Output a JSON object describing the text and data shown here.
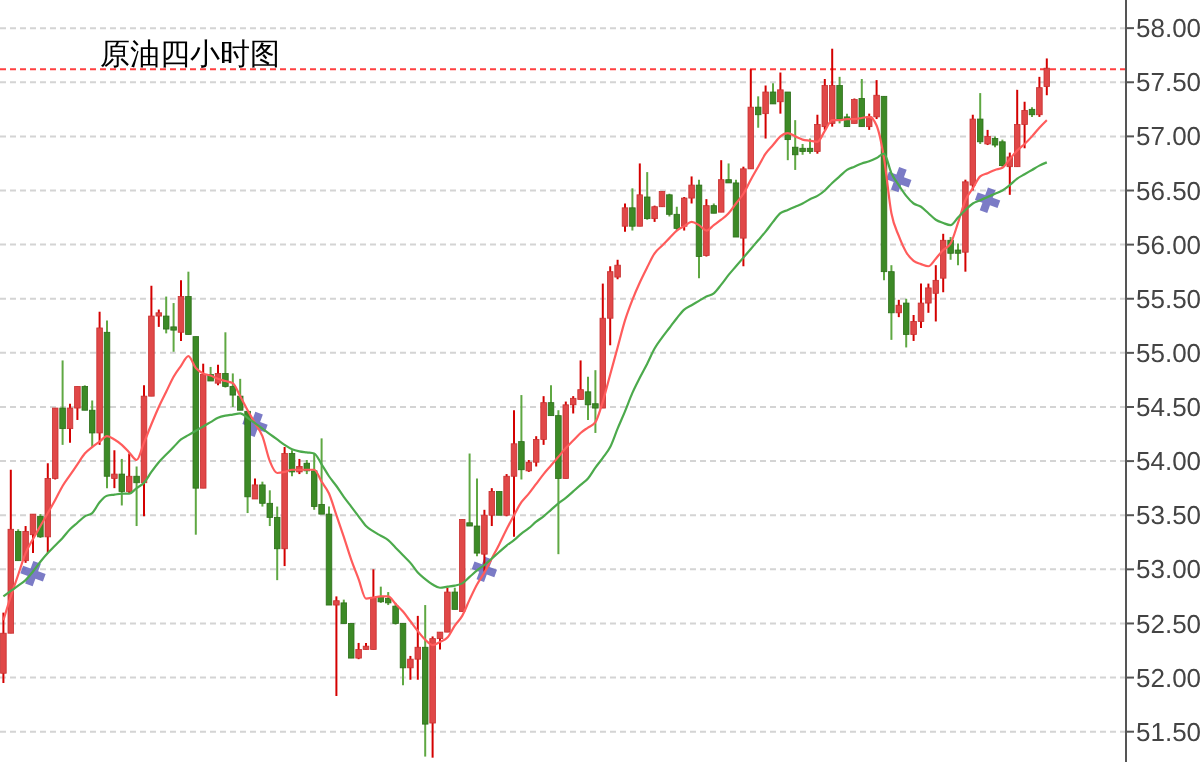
{
  "chart_data": {
    "type": "candlestick",
    "title": "原油四小时图",
    "categories": [
      null,
      null,
      null,
      null,
      null,
      null,
      null,
      null,
      null,
      null,
      null,
      null,
      null,
      null,
      null,
      null,
      null,
      null,
      null,
      null,
      null,
      null,
      null,
      null,
      null,
      null,
      null,
      null,
      null,
      null,
      null,
      null,
      null,
      null,
      null,
      null,
      null,
      null,
      null,
      null,
      null,
      null,
      null,
      null,
      null,
      null,
      null,
      null,
      null,
      null,
      null,
      null,
      null,
      null,
      null,
      null,
      null,
      null,
      null,
      null,
      null,
      null,
      null,
      null,
      null,
      null,
      null,
      null,
      null,
      null,
      null,
      null,
      null,
      null,
      null,
      null,
      null,
      null,
      null,
      null,
      null,
      null,
      null,
      null,
      null,
      null,
      null,
      null,
      null,
      null,
      null,
      null,
      null,
      null,
      null,
      null,
      null,
      null,
      null,
      null,
      null,
      null,
      null,
      null,
      null,
      null,
      null,
      null,
      null,
      null,
      null,
      null,
      null,
      null,
      null,
      null,
      null,
      null,
      null,
      null,
      null,
      null,
      null,
      null,
      null,
      null,
      null,
      null,
      null,
      null,
      null,
      null,
      null,
      null,
      null,
      null,
      null,
      null,
      null,
      null,
      null,
      null
    ],
    "ohlc": [
      [
        52.04,
        52.6,
        51.95,
        52.41
      ],
      [
        52.41,
        53.92,
        52.41,
        53.37
      ],
      [
        53.35,
        53.37,
        53.08,
        53.08
      ],
      [
        53.08,
        53.4,
        53.06,
        53.35
      ],
      [
        53.32,
        53.51,
        53.15,
        53.51
      ],
      [
        53.49,
        53.51,
        53.29,
        53.3
      ],
      [
        53.3,
        53.98,
        53.15,
        53.84
      ],
      [
        53.84,
        54.49,
        53.83,
        54.49
      ],
      [
        54.49,
        54.93,
        54.15,
        54.3
      ],
      [
        54.3,
        54.53,
        54.17,
        54.49
      ],
      [
        54.49,
        54.69,
        54.38,
        54.69
      ],
      [
        54.69,
        54.7,
        54.47,
        54.47
      ],
      [
        54.47,
        54.56,
        54.13,
        54.26
      ],
      [
        54.26,
        55.38,
        54.15,
        55.23
      ],
      [
        55.19,
        55.3,
        53.75,
        53.86
      ],
      [
        53.84,
        54.1,
        53.75,
        53.88
      ],
      [
        53.88,
        54.02,
        53.59,
        53.72
      ],
      [
        53.72,
        54.07,
        53.7,
        53.86
      ],
      [
        53.86,
        53.95,
        53.4,
        53.8
      ],
      [
        53.8,
        54.7,
        53.49,
        54.6
      ],
      [
        54.6,
        55.62,
        54.6,
        55.34
      ],
      [
        55.34,
        55.4,
        55.24,
        55.37
      ],
      [
        55.34,
        55.52,
        55.18,
        55.22
      ],
      [
        55.24,
        55.46,
        55.01,
        55.21
      ],
      [
        55.19,
        55.67,
        55.11,
        55.52
      ],
      [
        55.52,
        55.75,
        55.17,
        55.17
      ],
      [
        55.15,
        55.15,
        53.32,
        53.75
      ],
      [
        53.75,
        54.9,
        53.75,
        54.8
      ],
      [
        54.8,
        54.87,
        54.74,
        54.74
      ],
      [
        54.72,
        54.89,
        54.7,
        54.81
      ],
      [
        54.81,
        55.19,
        54.68,
        54.69
      ],
      [
        54.69,
        54.81,
        54.5,
        54.61
      ],
      [
        54.6,
        54.76,
        54.47,
        54.47
      ],
      [
        54.46,
        54.46,
        53.52,
        53.67
      ],
      [
        53.65,
        53.84,
        53.65,
        53.78
      ],
      [
        53.78,
        53.81,
        53.58,
        53.61
      ],
      [
        53.61,
        53.73,
        53.4,
        53.48
      ],
      [
        53.48,
        53.58,
        52.9,
        53.19
      ],
      [
        53.19,
        54.13,
        53.03,
        54.07
      ],
      [
        54.07,
        54.1,
        53.86,
        53.9
      ],
      [
        53.9,
        54.02,
        53.88,
        53.95
      ],
      [
        53.98,
        54.01,
        53.88,
        53.91
      ],
      [
        53.91,
        54.07,
        53.55,
        53.58
      ],
      [
        53.6,
        54.21,
        53.51,
        53.51
      ],
      [
        53.51,
        53.58,
        52.67,
        52.67
      ],
      [
        52.67,
        52.75,
        51.83,
        52.71
      ],
      [
        52.69,
        52.72,
        52.5,
        52.5
      ],
      [
        52.5,
        52.5,
        52.18,
        52.18
      ],
      [
        52.18,
        52.32,
        52.17,
        52.26
      ],
      [
        52.26,
        52.32,
        52.26,
        52.29
      ],
      [
        52.26,
        53.0,
        52.26,
        52.74
      ],
      [
        52.75,
        52.84,
        52.69,
        52.7
      ],
      [
        52.73,
        52.79,
        52.67,
        52.69
      ],
      [
        52.66,
        52.69,
        52.49,
        52.5
      ],
      [
        52.5,
        52.5,
        51.93,
        52.09
      ],
      [
        52.09,
        52.2,
        51.98,
        52.17
      ],
      [
        52.17,
        52.57,
        51.98,
        52.28
      ],
      [
        52.28,
        52.67,
        51.27,
        51.57
      ],
      [
        51.58,
        52.38,
        51.26,
        52.36
      ],
      [
        52.36,
        52.42,
        52.26,
        52.42
      ],
      [
        52.42,
        52.83,
        52.42,
        52.79
      ],
      [
        52.79,
        52.83,
        52.63,
        52.63
      ],
      [
        52.61,
        53.46,
        52.61,
        53.46
      ],
      [
        53.43,
        54.07,
        53.4,
        53.4
      ],
      [
        53.4,
        53.84,
        53.12,
        53.15
      ],
      [
        53.14,
        53.55,
        52.98,
        53.5
      ],
      [
        53.5,
        53.75,
        53.4,
        53.72
      ],
      [
        53.72,
        53.72,
        53.5,
        53.5
      ],
      [
        53.5,
        53.88,
        53.49,
        53.86
      ],
      [
        53.86,
        54.47,
        53.3,
        54.16
      ],
      [
        54.18,
        54.61,
        53.83,
        53.92
      ],
      [
        53.91,
        54.01,
        53.9,
        53.99
      ],
      [
        53.99,
        54.23,
        53.95,
        54.2
      ],
      [
        54.2,
        54.6,
        54.15,
        54.54
      ],
      [
        54.54,
        54.7,
        54.42,
        54.42
      ],
      [
        54.42,
        54.47,
        53.14,
        53.84
      ],
      [
        53.84,
        54.55,
        53.84,
        54.52
      ],
      [
        54.52,
        54.6,
        54.44,
        54.58
      ],
      [
        54.57,
        54.93,
        54.57,
        54.66
      ],
      [
        54.64,
        54.78,
        54.38,
        54.52
      ],
      [
        54.53,
        54.84,
        54.26,
        54.49
      ],
      [
        54.49,
        55.64,
        54.49,
        55.32
      ],
      [
        55.32,
        55.8,
        55.07,
        55.75
      ],
      [
        55.7,
        55.86,
        55.68,
        55.81
      ],
      [
        56.17,
        56.38,
        56.12,
        56.34
      ],
      [
        56.34,
        56.52,
        56.13,
        56.17
      ],
      [
        56.17,
        56.75,
        56.17,
        56.46
      ],
      [
        56.44,
        56.67,
        56.23,
        56.24
      ],
      [
        56.24,
        56.36,
        56.21,
        56.35
      ],
      [
        56.35,
        56.49,
        56.35,
        56.49
      ],
      [
        56.46,
        56.47,
        56.26,
        56.28
      ],
      [
        56.28,
        56.35,
        56.13,
        56.15
      ],
      [
        56.17,
        56.44,
        56.13,
        56.43
      ],
      [
        56.43,
        56.63,
        56.38,
        56.55
      ],
      [
        56.55,
        56.6,
        55.69,
        55.89
      ],
      [
        55.9,
        56.42,
        55.89,
        56.36
      ],
      [
        56.36,
        56.38,
        56.29,
        56.29
      ],
      [
        56.3,
        56.78,
        56.3,
        56.6
      ],
      [
        56.6,
        56.75,
        56.57,
        56.57
      ],
      [
        56.57,
        56.6,
        56.07,
        56.07
      ],
      [
        56.06,
        56.72,
        55.8,
        56.7
      ],
      [
        56.7,
        57.62,
        56.7,
        57.27
      ],
      [
        57.27,
        57.37,
        57.08,
        57.2
      ],
      [
        57.21,
        57.47,
        56.98,
        57.41
      ],
      [
        57.41,
        57.49,
        57.3,
        57.3
      ],
      [
        57.32,
        57.59,
        57.21,
        57.43
      ],
      [
        57.41,
        57.41,
        56.78,
        56.97
      ],
      [
        56.9,
        57.15,
        56.69,
        56.83
      ],
      [
        56.89,
        56.93,
        56.83,
        56.86
      ],
      [
        56.89,
        56.98,
        56.84,
        56.86
      ],
      [
        56.86,
        57.2,
        56.84,
        57.11
      ],
      [
        57.09,
        57.53,
        57.06,
        57.47
      ],
      [
        57.12,
        57.81,
        57.09,
        57.47
      ],
      [
        57.47,
        57.55,
        57.12,
        57.16
      ],
      [
        57.18,
        57.21,
        57.09,
        57.09
      ],
      [
        57.12,
        57.35,
        57.12,
        57.34
      ],
      [
        57.35,
        57.53,
        57.09,
        57.09
      ],
      [
        57.09,
        57.21,
        57.06,
        57.18
      ],
      [
        57.18,
        57.52,
        57.16,
        57.38
      ],
      [
        57.37,
        57.37,
        55.67,
        55.75
      ],
      [
        55.75,
        55.81,
        55.12,
        55.37
      ],
      [
        55.37,
        55.49,
        55.33,
        55.44
      ],
      [
        55.46,
        55.5,
        55.05,
        55.17
      ],
      [
        55.17,
        55.35,
        55.11,
        55.29
      ],
      [
        55.29,
        55.64,
        55.23,
        55.46
      ],
      [
        55.46,
        55.64,
        55.37,
        55.6
      ],
      [
        55.55,
        55.81,
        55.29,
        55.67
      ],
      [
        55.69,
        56.1,
        55.56,
        56.04
      ],
      [
        56.04,
        56.07,
        55.86,
        55.92
      ],
      [
        55.95,
        56.01,
        55.81,
        55.92
      ],
      [
        55.93,
        56.6,
        55.75,
        56.58
      ],
      [
        56.55,
        57.2,
        56.5,
        57.16
      ],
      [
        57.16,
        57.4,
        56.93,
        56.95
      ],
      [
        56.93,
        57.06,
        56.92,
        57.0
      ],
      [
        56.98,
        57.0,
        56.9,
        56.92
      ],
      [
        56.95,
        56.97,
        56.72,
        56.73
      ],
      [
        56.72,
        56.85,
        56.46,
        56.81
      ],
      [
        56.72,
        57.43,
        56.72,
        57.11
      ],
      [
        57.11,
        57.32,
        56.89,
        57.24
      ],
      [
        57.25,
        57.27,
        57.18,
        57.2
      ],
      [
        57.2,
        57.55,
        57.18,
        57.45
      ],
      [
        57.46,
        57.72,
        57.38,
        57.63
      ]
    ],
    "series": [
      {
        "type": "line",
        "color": "#ff5c5c",
        "values": [
          52.53,
          52.75,
          52.95,
          53.15,
          53.28,
          53.4,
          53.52,
          53.64,
          53.77,
          53.87,
          53.97,
          54.07,
          54.13,
          54.18,
          54.23,
          54.2,
          54.15,
          54.08,
          54.01,
          54.17,
          54.34,
          54.5,
          54.64,
          54.78,
          54.88,
          54.97,
          54.86,
          54.81,
          54.79,
          54.76,
          54.74,
          54.72,
          54.6,
          54.47,
          54.35,
          54.23,
          54.0,
          53.89,
          53.9,
          53.92,
          53.92,
          53.92,
          53.92,
          53.81,
          53.7,
          53.5,
          53.3,
          53.09,
          52.91,
          52.73,
          52.74,
          52.75,
          52.75,
          52.68,
          52.61,
          52.52,
          52.43,
          52.35,
          52.3,
          52.33,
          52.37,
          52.48,
          52.57,
          52.72,
          52.86,
          52.97,
          53.1,
          53.23,
          53.37,
          53.5,
          53.62,
          53.7,
          53.79,
          53.88,
          53.96,
          54.04,
          54.12,
          54.19,
          54.26,
          54.31,
          54.36,
          54.55,
          54.8,
          55.05,
          55.3,
          55.49,
          55.65,
          55.79,
          55.92,
          55.99,
          56.06,
          56.13,
          56.17,
          56.21,
          56.18,
          56.13,
          56.18,
          56.23,
          56.29,
          56.38,
          56.47,
          56.6,
          56.72,
          56.84,
          56.92,
          57.0,
          57.03,
          57.0,
          56.97,
          56.96,
          56.95,
          57.05,
          57.15,
          57.15,
          57.16,
          57.16,
          57.17,
          57.18,
          57.1,
          56.8,
          56.29,
          56.08,
          55.93,
          55.85,
          55.82,
          55.8,
          55.87,
          55.95,
          56.01,
          56.2,
          56.41,
          56.52,
          56.63,
          56.66,
          56.69,
          56.71,
          56.79,
          56.87,
          56.93,
          57.0,
          57.08,
          57.15
        ]
      },
      {
        "type": "line",
        "color": "#4caa4c",
        "values": [
          52.75,
          52.8,
          52.85,
          52.9,
          52.98,
          53.07,
          53.15,
          53.22,
          53.29,
          53.37,
          53.43,
          53.49,
          53.52,
          53.62,
          53.68,
          53.69,
          53.7,
          53.7,
          53.75,
          53.8,
          53.9,
          53.99,
          54.06,
          54.13,
          54.2,
          54.24,
          54.28,
          54.32,
          54.36,
          54.4,
          54.42,
          54.43,
          54.44,
          54.4,
          54.35,
          54.3,
          54.25,
          54.2,
          54.15,
          54.11,
          54.09,
          54.08,
          54.07,
          53.97,
          53.86,
          53.77,
          53.67,
          53.58,
          53.49,
          53.4,
          53.35,
          53.31,
          53.27,
          53.2,
          53.13,
          53.06,
          52.97,
          52.91,
          52.86,
          52.83,
          52.84,
          52.85,
          52.87,
          52.93,
          52.99,
          53.04,
          53.1,
          53.16,
          53.22,
          53.27,
          53.33,
          53.38,
          53.44,
          53.49,
          53.55,
          53.61,
          53.66,
          53.72,
          53.78,
          53.84,
          53.94,
          54.03,
          54.13,
          54.3,
          54.46,
          54.63,
          54.77,
          54.9,
          55.04,
          55.14,
          55.23,
          55.32,
          55.4,
          55.44,
          55.48,
          55.52,
          55.55,
          55.63,
          55.72,
          55.8,
          55.88,
          55.96,
          56.04,
          56.12,
          56.21,
          56.29,
          56.32,
          56.35,
          56.38,
          56.42,
          56.45,
          56.5,
          56.57,
          56.63,
          56.69,
          56.72,
          56.75,
          56.77,
          56.8,
          56.84,
          56.66,
          56.55,
          56.45,
          56.38,
          56.35,
          56.29,
          56.23,
          56.2,
          56.18,
          56.25,
          56.32,
          56.38,
          56.41,
          56.44,
          56.47,
          56.5,
          56.55,
          56.61,
          56.65,
          56.69,
          56.73,
          56.76
        ]
      },
      {
        "type": "scatter",
        "color": "#5a5ab8",
        "marker": "cross",
        "values": [
          null,
          null,
          null,
          null,
          52.96,
          null,
          null,
          null,
          null,
          null,
          null,
          null,
          null,
          null,
          null,
          null,
          null,
          null,
          null,
          null,
          null,
          null,
          null,
          null,
          null,
          null,
          null,
          null,
          null,
          null,
          null,
          null,
          null,
          null,
          54.34,
          null,
          null,
          null,
          null,
          null,
          null,
          null,
          null,
          null,
          null,
          null,
          null,
          null,
          null,
          null,
          null,
          null,
          null,
          null,
          null,
          null,
          null,
          null,
          null,
          null,
          null,
          null,
          null,
          null,
          null,
          53.0,
          null,
          null,
          null,
          null,
          null,
          null,
          null,
          null,
          null,
          null,
          null,
          null,
          null,
          null,
          null,
          null,
          null,
          null,
          null,
          null,
          null,
          null,
          null,
          null,
          null,
          null,
          null,
          null,
          null,
          null,
          null,
          null,
          null,
          null,
          null,
          null,
          null,
          null,
          null,
          null,
          null,
          null,
          null,
          null,
          null,
          null,
          null,
          null,
          null,
          null,
          null,
          null,
          null,
          null,
          null,
          56.6,
          null,
          null,
          null,
          null,
          null,
          null,
          null,
          null,
          null,
          null,
          null,
          56.41,
          null,
          null,
          null,
          null,
          null,
          null,
          null,
          null
        ]
      }
    ],
    "ylim": [
      51.22,
      58.26
    ],
    "yticks": [
      {
        "value": 51.5,
        "label": "51.50"
      },
      {
        "value": 52,
        "label": "52.00"
      },
      {
        "value": 52.5,
        "label": "52.50"
      },
      {
        "value": 53,
        "label": "53.00"
      },
      {
        "value": 53.5,
        "label": "53.50"
      },
      {
        "value": 54,
        "label": "54.00"
      },
      {
        "value": 54.5,
        "label": "54.50"
      },
      {
        "value": 55,
        "label": "55.00"
      },
      {
        "value": 55.5,
        "label": "55.50"
      },
      {
        "value": 56,
        "label": "56.00"
      },
      {
        "value": 56.5,
        "label": "56.50"
      },
      {
        "value": 57,
        "label": "57.00"
      },
      {
        "value": 57.5,
        "label": "57.50"
      },
      {
        "value": 58,
        "label": "58.00"
      }
    ],
    "grid": "y",
    "tick_labels": "y",
    "ref_lines": [
      {
        "axis": "y",
        "value": 57.62,
        "color": "#ff4040",
        "line_style": "dashed"
      }
    ]
  }
}
